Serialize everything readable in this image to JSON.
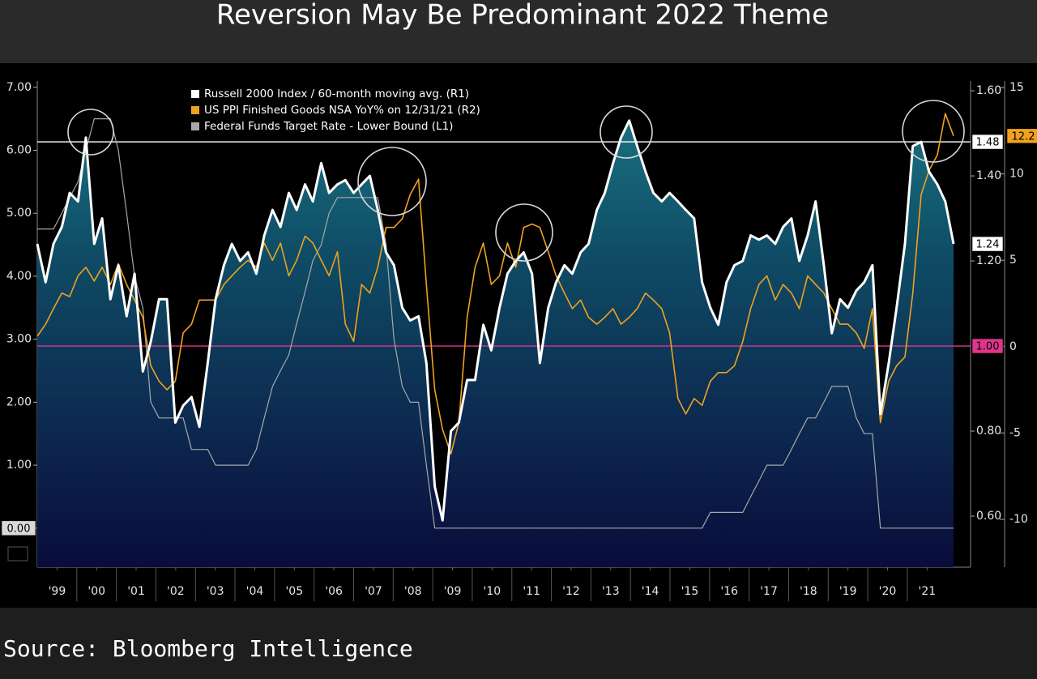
{
  "chart_data": {
    "type": "line",
    "title": "Reversion May Be Predominant 2022 Theme",
    "source": "Source: Bloomberg Intelligence",
    "x": [
      1999,
      1999.21,
      1999.41,
      1999.62,
      1999.82,
      2000.03,
      2000.23,
      2000.44,
      2000.64,
      2000.85,
      2001.05,
      2001.26,
      2001.46,
      2001.67,
      2001.87,
      2002.08,
      2002.28,
      2002.49,
      2002.69,
      2002.9,
      2003.1,
      2003.31,
      2003.51,
      2003.72,
      2003.92,
      2004.13,
      2004.33,
      2004.54,
      2004.74,
      2004.95,
      2005.15,
      2005.36,
      2005.56,
      2005.77,
      2005.97,
      2006.18,
      2006.38,
      2006.59,
      2006.79,
      2007,
      2007.2,
      2007.41,
      2007.61,
      2007.82,
      2008.02,
      2008.23,
      2008.43,
      2008.64,
      2008.84,
      2009.05,
      2009.25,
      2009.46,
      2009.66,
      2009.87,
      2010.07,
      2010.28,
      2010.48,
      2010.69,
      2010.89,
      2011.1,
      2011.3,
      2011.51,
      2011.71,
      2011.92,
      2012.12,
      2012.33,
      2012.53,
      2012.74,
      2012.94,
      2013.15,
      2013.35,
      2013.56,
      2013.76,
      2013.97,
      2014.17,
      2014.38,
      2014.58,
      2014.79,
      2014.99,
      2015.2,
      2015.4,
      2015.61,
      2015.81,
      2016.02,
      2016.22,
      2016.43,
      2016.63,
      2016.84,
      2017.04,
      2017.25,
      2017.45,
      2017.66,
      2017.86,
      2018.07,
      2018.27,
      2018.48,
      2018.68,
      2018.89,
      2019.09,
      2019.3,
      2019.5,
      2019.71,
      2019.91,
      2020.12,
      2020.32,
      2020.53,
      2020.73,
      2020.94,
      2021.14,
      2021.35,
      2021.55,
      2021.76,
      2021.96,
      2022.17
    ],
    "series": [
      {
        "name": "Russell 2000 Index / 60-month moving avg. (R1)",
        "color": "#ffffff",
        "axis": "y2",
        "fill": true,
        "values": [
          1.24,
          1.15,
          1.24,
          1.28,
          1.36,
          1.34,
          1.49,
          1.24,
          1.3,
          1.11,
          1.19,
          1.07,
          1.17,
          0.94,
          1.01,
          1.11,
          1.11,
          0.82,
          0.86,
          0.88,
          0.81,
          0.96,
          1.11,
          1.19,
          1.24,
          1.2,
          1.22,
          1.17,
          1.26,
          1.32,
          1.28,
          1.36,
          1.32,
          1.38,
          1.34,
          1.43,
          1.36,
          1.38,
          1.39,
          1.36,
          1.38,
          1.4,
          1.32,
          1.22,
          1.19,
          1.09,
          1.06,
          1.07,
          0.96,
          0.67,
          0.59,
          0.8,
          0.82,
          0.92,
          0.92,
          1.05,
          0.99,
          1.09,
          1.17,
          1.2,
          1.22,
          1.17,
          0.96,
          1.09,
          1.15,
          1.19,
          1.17,
          1.22,
          1.24,
          1.32,
          1.36,
          1.43,
          1.49,
          1.53,
          1.47,
          1.41,
          1.36,
          1.34,
          1.36,
          1.34,
          1.32,
          1.3,
          1.15,
          1.09,
          1.05,
          1.15,
          1.19,
          1.2,
          1.26,
          1.25,
          1.26,
          1.24,
          1.28,
          1.3,
          1.2,
          1.26,
          1.34,
          1.19,
          1.03,
          1.11,
          1.09,
          1.13,
          1.15,
          1.19,
          0.84,
          0.96,
          1.09,
          1.24,
          1.47,
          1.48,
          1.41,
          1.38,
          1.34,
          1.24
        ]
      },
      {
        "name": "US PPI Finished Goods NSA YoY% on 12/31/21 (R2)",
        "color": "#f0a21e",
        "axis": "y3",
        "values": [
          0.6,
          1.3,
          2.2,
          3.1,
          2.9,
          4.1,
          4.6,
          3.8,
          4.6,
          3.6,
          4.8,
          3.6,
          2.7,
          1.7,
          -1.1,
          -2.0,
          -2.5,
          -2.0,
          0.8,
          1.3,
          2.7,
          2.7,
          2.7,
          3.6,
          4.1,
          4.6,
          5.0,
          4.6,
          6.0,
          5.0,
          6.0,
          4.1,
          5.0,
          6.4,
          6.0,
          5.0,
          4.1,
          5.5,
          1.3,
          0.3,
          3.6,
          3.1,
          4.6,
          6.9,
          6.9,
          7.4,
          8.8,
          9.7,
          3.6,
          -2.5,
          -4.8,
          -6.2,
          -4.4,
          1.7,
          4.6,
          6.0,
          3.6,
          4.1,
          6.0,
          4.6,
          6.9,
          7.1,
          6.9,
          5.5,
          4.1,
          3.1,
          2.2,
          2.7,
          1.7,
          1.3,
          1.7,
          2.2,
          1.3,
          1.7,
          2.2,
          3.1,
          2.7,
          2.2,
          0.8,
          -3.0,
          -3.9,
          -3.0,
          -3.4,
          -2.0,
          -1.5,
          -1.5,
          -1.1,
          0.3,
          2.2,
          3.6,
          4.1,
          2.7,
          3.6,
          3.1,
          2.2,
          4.1,
          3.6,
          3.1,
          2.2,
          1.3,
          1.3,
          0.8,
          -0.1,
          2.2,
          -4.4,
          -2.0,
          -1.1,
          -0.6,
          3.1,
          8.8,
          10.2,
          11.1,
          13.5,
          12.2
        ]
      },
      {
        "name": "Federal Funds Target Rate - Lower Bound (L1)",
        "color": "#a8a8a8",
        "axis": "y",
        "values": [
          4.75,
          4.75,
          4.75,
          5,
          5.25,
          5.5,
          6,
          6.5,
          6.5,
          6.5,
          6,
          5,
          4,
          3.5,
          2,
          1.75,
          1.75,
          1.75,
          1.75,
          1.25,
          1.25,
          1.25,
          1,
          1,
          1,
          1,
          1,
          1.25,
          1.75,
          2.25,
          2.5,
          2.75,
          3.25,
          3.75,
          4.25,
          4.5,
          5,
          5.25,
          5.25,
          5.25,
          5.25,
          5.25,
          5.25,
          4.5,
          3,
          2.25,
          2,
          2,
          1,
          0,
          0,
          0,
          0,
          0,
          0,
          0,
          0,
          0,
          0,
          0,
          0,
          0,
          0,
          0,
          0,
          0,
          0,
          0,
          0,
          0,
          0,
          0,
          0,
          0,
          0,
          0,
          0,
          0,
          0,
          0,
          0,
          0,
          0,
          0.25,
          0.25,
          0.25,
          0.25,
          0.25,
          0.5,
          0.75,
          1,
          1,
          1,
          1.25,
          1.5,
          1.75,
          1.75,
          2,
          2.25,
          2.25,
          2.25,
          1.75,
          1.5,
          1.5,
          0,
          0,
          0,
          0,
          0,
          0,
          0,
          0,
          0,
          0
        ],
        "value_labels": {
          "113": "0.00"
        }
      }
    ],
    "xlim": [
      1999,
      2022.6
    ],
    "xticks": [
      {
        "value": 1999.5,
        "label": "'99"
      },
      {
        "value": 2000.5,
        "label": "'00"
      },
      {
        "value": 2001.5,
        "label": "'01"
      },
      {
        "value": 2002.5,
        "label": "'02"
      },
      {
        "value": 2003.5,
        "label": "'03"
      },
      {
        "value": 2004.5,
        "label": "'04"
      },
      {
        "value": 2005.5,
        "label": "'05"
      },
      {
        "value": 2006.5,
        "label": "'06"
      },
      {
        "value": 2007.5,
        "label": "'07"
      },
      {
        "value": 2008.5,
        "label": "'08"
      },
      {
        "value": 2009.5,
        "label": "'09"
      },
      {
        "value": 2010.5,
        "label": "'10"
      },
      {
        "value": 2011.5,
        "label": "'11"
      },
      {
        "value": 2012.5,
        "label": "'12"
      },
      {
        "value": 2013.5,
        "label": "'13"
      },
      {
        "value": 2014.5,
        "label": "'14"
      },
      {
        "value": 2015.5,
        "label": "'15"
      },
      {
        "value": 2016.5,
        "label": "'16"
      },
      {
        "value": 2017.5,
        "label": "'17"
      },
      {
        "value": 2018.5,
        "label": "'18"
      },
      {
        "value": 2019.5,
        "label": "'19"
      },
      {
        "value": 2020.5,
        "label": "'20"
      },
      {
        "value": 2021.5,
        "label": "'21"
      }
    ],
    "ylim": [
      -0.62,
      7.1
    ],
    "yticks": [
      {
        "value": 0,
        "label": "0.00"
      },
      {
        "value": 1,
        "label": "1.00"
      },
      {
        "value": 2,
        "label": "2.00"
      },
      {
        "value": 3,
        "label": "3.00"
      },
      {
        "value": 4,
        "label": "4.00"
      },
      {
        "value": 5,
        "label": "5.00"
      },
      {
        "value": 6,
        "label": "6.00"
      },
      {
        "value": 7,
        "label": "7.00"
      }
    ],
    "y2lim": [
      0.48,
      1.623
    ],
    "y2ticks": [
      {
        "value": 0.6,
        "label": "0.60"
      },
      {
        "value": 0.8,
        "label": "0.80"
      },
      {
        "value": 1.2,
        "label": "1.20"
      },
      {
        "value": 1.4,
        "label": "1.40"
      },
      {
        "value": 1.6,
        "label": "1.60"
      }
    ],
    "y3lim": [
      -12.77,
      15.38
    ],
    "y3ticks": [
      -10,
      -5,
      0,
      5,
      10,
      15
    ],
    "reference_lines": [
      {
        "value": 1.48,
        "axis": "y2",
        "color": "#ffffff"
      },
      {
        "value": 1,
        "label": "1.00",
        "axis": "y2",
        "color": "#e0358c"
      }
    ],
    "legend": "upper left"
  }
}
